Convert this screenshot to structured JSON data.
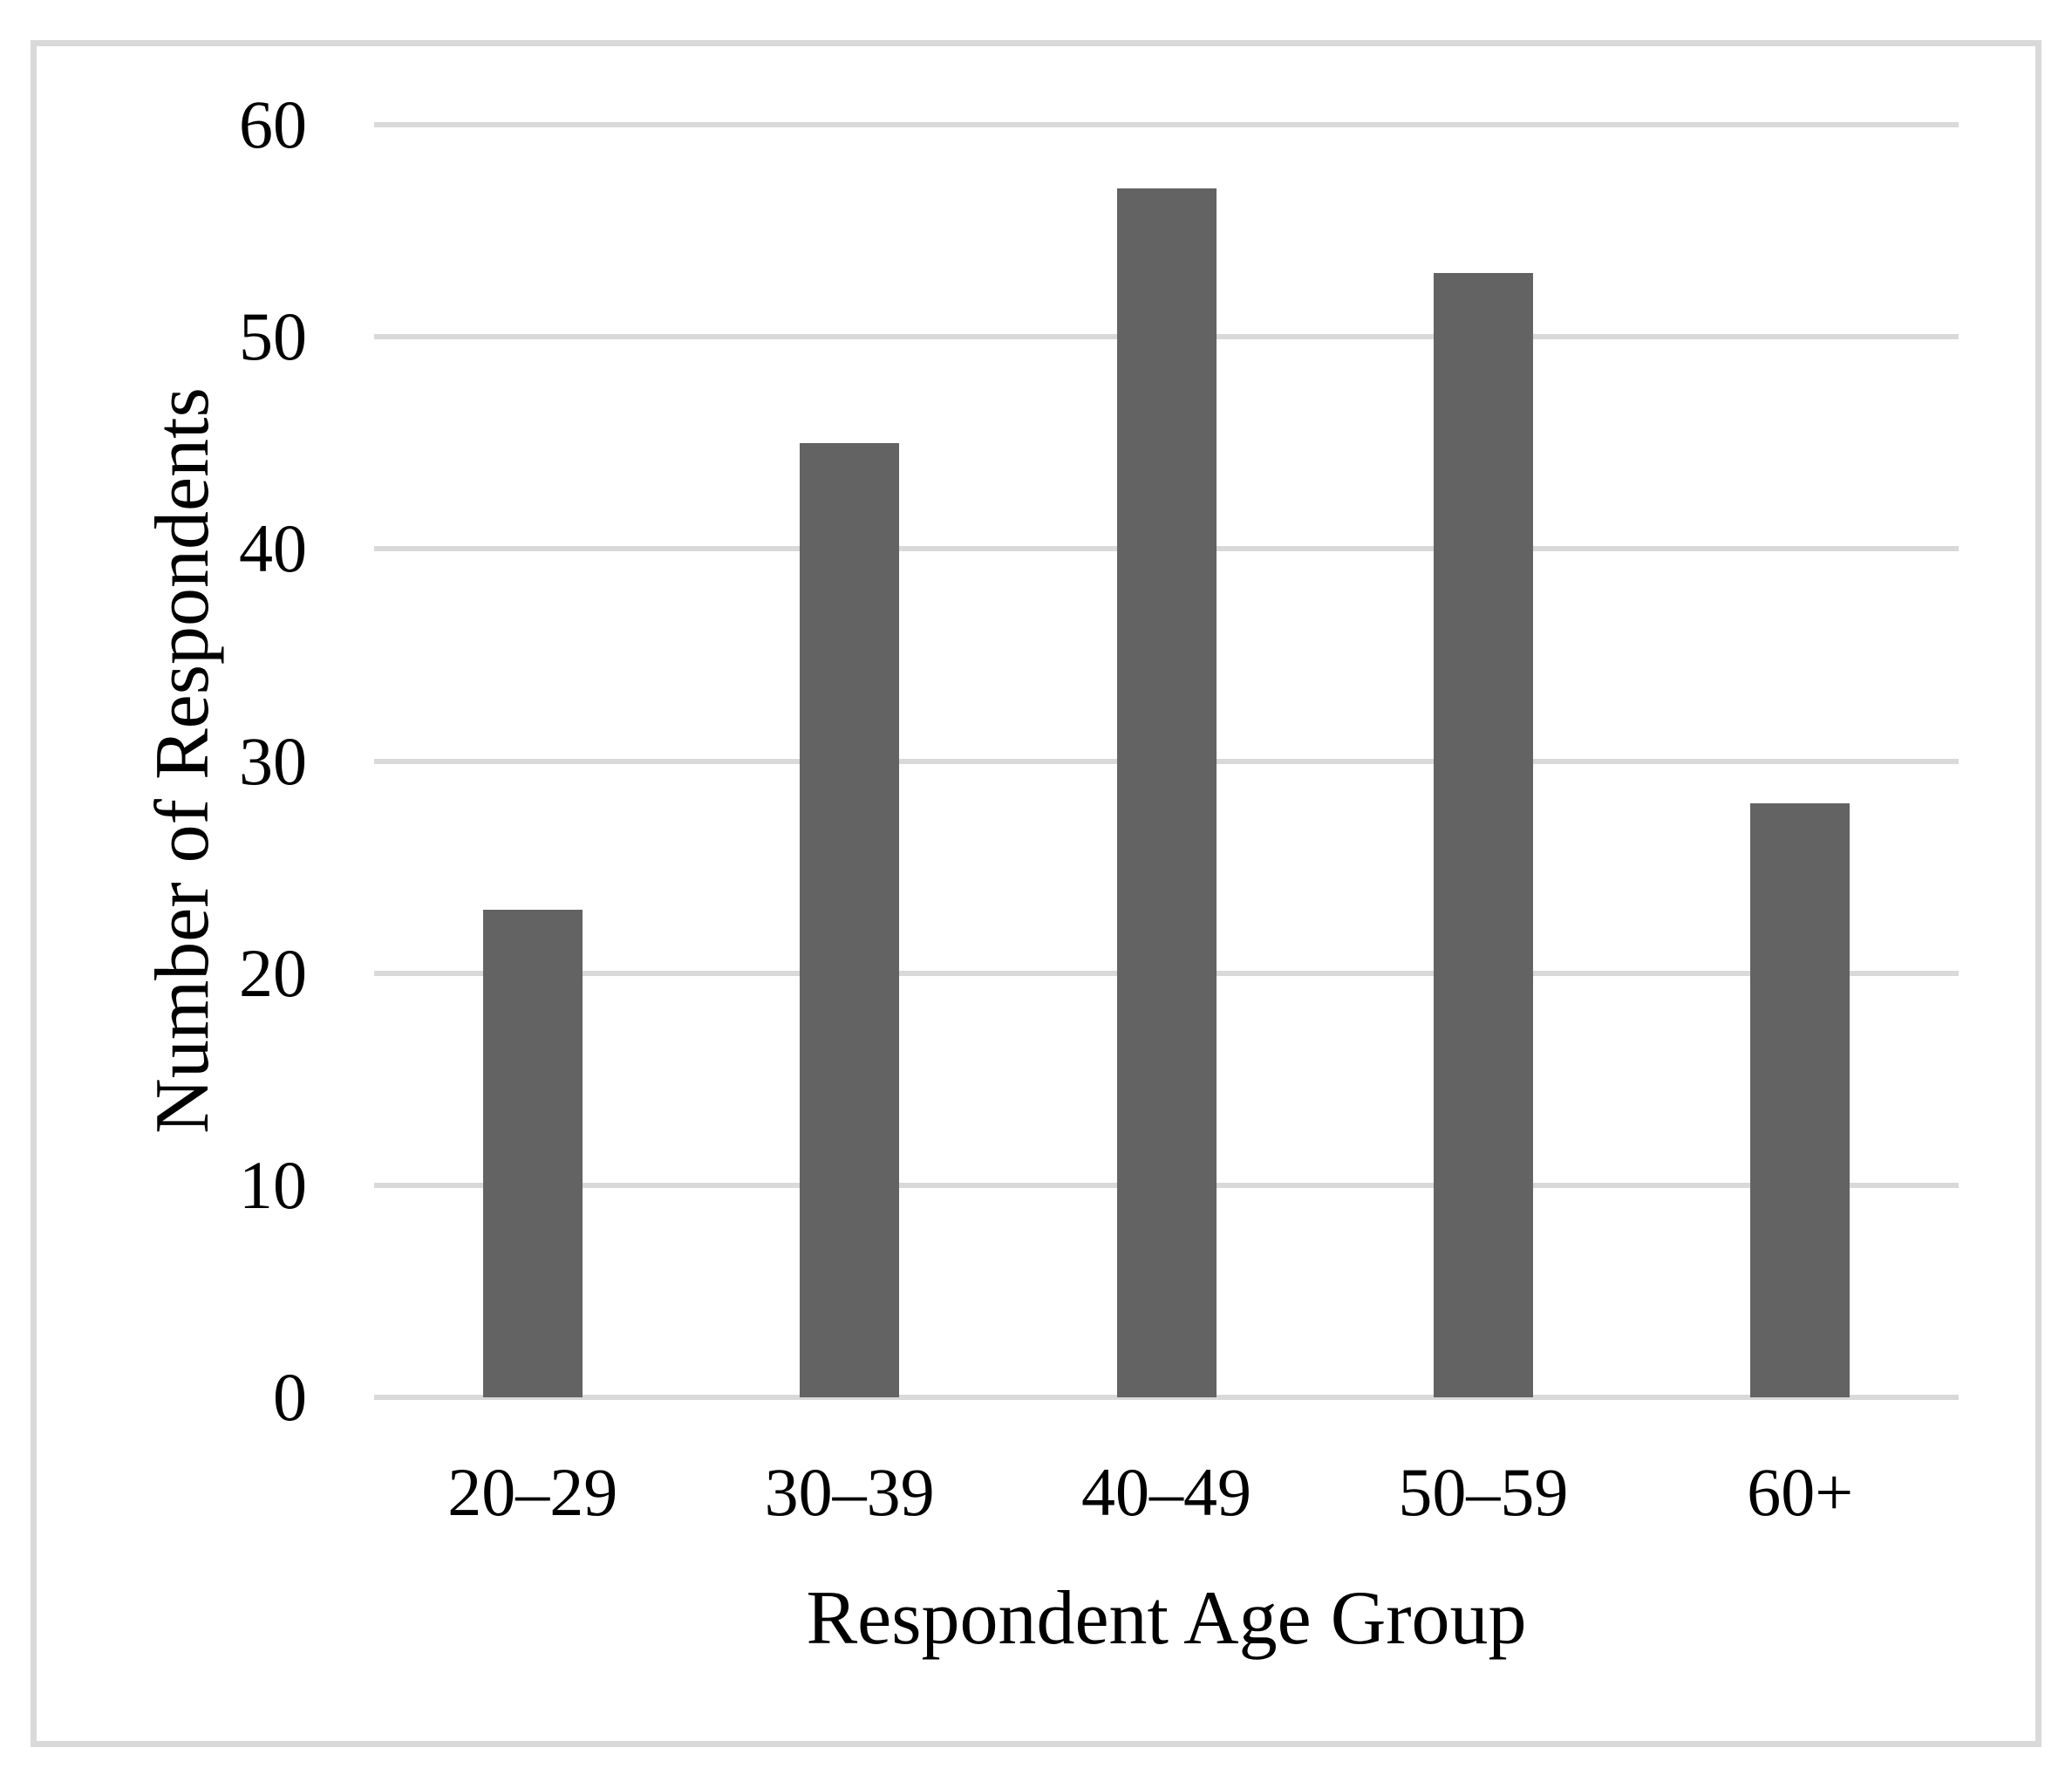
{
  "chart_data": {
    "type": "bar",
    "title": "",
    "categories": [
      "20–29",
      "30–39",
      "40–49",
      "50–59",
      "60+"
    ],
    "values": [
      23,
      45,
      57,
      53,
      28
    ],
    "xlabel": "Respondent Age Group",
    "ylabel": "Number of Respondents",
    "ylim": [
      0,
      60
    ],
    "yticks": [
      0,
      10,
      20,
      30,
      40,
      50,
      60
    ],
    "grid": "horizontal",
    "legend_position": "none",
    "bar_color": "#636363",
    "gridline_color": "#d9d9d9",
    "axisline_color": "#d9d9d9",
    "frame_color": "#d9d9d9",
    "text_color": "#000000",
    "background_color": "#ffffff"
  }
}
